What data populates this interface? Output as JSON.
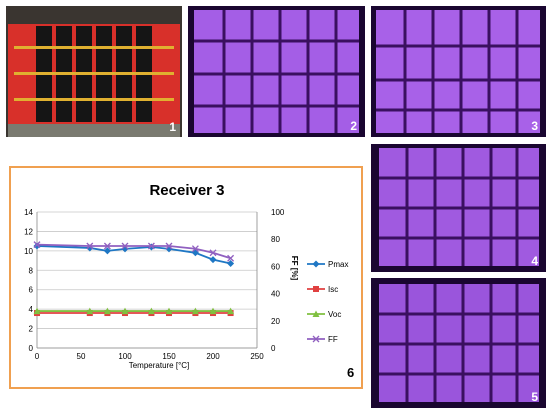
{
  "panels": [
    {
      "number": "1",
      "description": "photo"
    },
    {
      "number": "2",
      "description": "electroluminescence"
    },
    {
      "number": "3",
      "description": "electroluminescence"
    },
    {
      "number": "4",
      "description": "electroluminescence"
    },
    {
      "number": "5",
      "description": "electroluminescence"
    }
  ],
  "colors": {
    "el_glow": "#b060f0",
    "el_dark": "#2a0a4a",
    "frame": "#f0a050",
    "pmax": "#1f77c4",
    "isc": "#e04040",
    "voc": "#80c040",
    "ff": "#9060c0"
  },
  "chart_data": {
    "type": "line",
    "panel_number": "6",
    "title": "Receiver 3",
    "xlabel": "Temperature [°C]",
    "ylabel": "",
    "y2label": "FF [%]",
    "xlim": [
      0,
      250
    ],
    "ylim": [
      0,
      14
    ],
    "y2lim": [
      0,
      100
    ],
    "xticks": [
      0,
      50,
      100,
      150,
      200,
      250
    ],
    "yticks": [
      0,
      2,
      4,
      6,
      8,
      10,
      12,
      14
    ],
    "y2ticks": [
      0,
      20,
      40,
      60,
      80,
      100
    ],
    "grid": true,
    "legend_position": "right",
    "series": [
      {
        "name": "Pmax",
        "axis": "left",
        "color": "#1f77c4",
        "marker": "diamond",
        "x": [
          0,
          60,
          80,
          100,
          130,
          150,
          180,
          200,
          220
        ],
        "y": [
          10.5,
          10.3,
          10.0,
          10.2,
          10.4,
          10.2,
          9.8,
          9.1,
          8.7
        ]
      },
      {
        "name": "Isc",
        "axis": "left",
        "color": "#e04040",
        "marker": "square",
        "x": [
          0,
          60,
          80,
          100,
          130,
          150,
          180,
          200,
          220
        ],
        "y": [
          3.6,
          3.6,
          3.6,
          3.6,
          3.6,
          3.6,
          3.6,
          3.6,
          3.6
        ]
      },
      {
        "name": "Voc",
        "axis": "left",
        "color": "#80c040",
        "marker": "triangle",
        "x": [
          0,
          60,
          80,
          100,
          130,
          150,
          180,
          200,
          220
        ],
        "y": [
          3.8,
          3.8,
          3.8,
          3.8,
          3.8,
          3.8,
          3.8,
          3.8,
          3.8
        ]
      },
      {
        "name": "FF",
        "axis": "right",
        "color": "#9060c0",
        "marker": "x",
        "x": [
          0,
          60,
          80,
          100,
          130,
          150,
          180,
          200,
          220
        ],
        "y": [
          76,
          75,
          75,
          75,
          75,
          75,
          73,
          70,
          66
        ]
      }
    ]
  }
}
